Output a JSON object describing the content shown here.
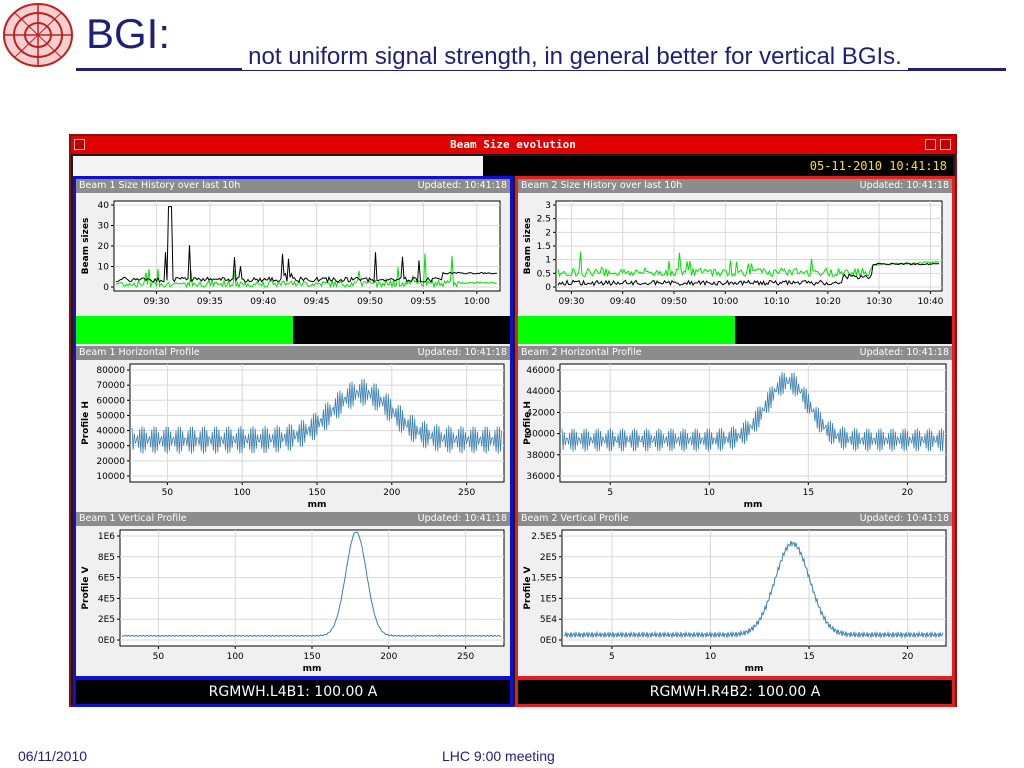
{
  "slide": {
    "title": "BGI:",
    "subtitle": "not uniform signal strength, in general better for vertical BGIs.",
    "footer_date": "06/11/2010",
    "footer_meeting": "LHC 9:00 meeting",
    "logo_icon": "lhc-logo-icon"
  },
  "app": {
    "window_title": "Beam Size evolution",
    "timestamp": "05-11-2010 10:41:18",
    "colors": {
      "titlebar": "#e00000",
      "beam1_frame": "#1010d0",
      "beam2_frame": "#e02020",
      "signal": "#3a7fb0",
      "green": "#00ff00"
    }
  },
  "beam1": {
    "size_history": {
      "header": "Beam 1 Size History over last 10h",
      "updated": "Updated: 10:41:18",
      "ylabel": "Beam sizes",
      "yticks": [
        "40",
        "30",
        "20",
        "10",
        "0"
      ],
      "xticks": [
        "09:30",
        "09:35",
        "09:40",
        "09:45",
        "09:50",
        "09:55",
        "10:00"
      ],
      "bar_fill_fraction": 0.5
    },
    "horizontal": {
      "header": "Beam 1 Horizontal Profile",
      "updated": "Updated: 10:41:18",
      "ylabel": "Profile H",
      "xlabel": "mm",
      "yticks": [
        "80000",
        "70000",
        "60000",
        "50000",
        "40000",
        "30000",
        "20000",
        "10000"
      ],
      "xticks": [
        "50",
        "100",
        "150",
        "200",
        "250"
      ]
    },
    "vertical": {
      "header": "Beam 1 Vertical Profile",
      "updated": "Updated: 10:41:18",
      "ylabel": "Profile V",
      "xlabel": "mm",
      "yticks": [
        "1E6",
        "8E5",
        "6E5",
        "4E5",
        "2E5",
        "0E0"
      ],
      "xticks": [
        "50",
        "100",
        "150",
        "200",
        "250"
      ]
    },
    "magnet": "RGMWH.L4B1: 100.00 A"
  },
  "beam2": {
    "size_history": {
      "header": "Beam 2 Size History over last 10h",
      "updated": "Updated: 10:41:18",
      "ylabel": "Beam sizes",
      "yticks": [
        "3",
        "2.5",
        "2",
        "1.5",
        "1",
        "0.5",
        "0"
      ],
      "xticks": [
        "09:30",
        "09:40",
        "09:50",
        "10:00",
        "10:10",
        "10:20",
        "10:30",
        "10:40"
      ],
      "bar_fill_fraction": 0.5
    },
    "horizontal": {
      "header": "Beam 2 Horizontal Profile",
      "updated": "Updated: 10:41:18",
      "ylabel": "Profile H",
      "xlabel": "mm",
      "yticks": [
        "46000",
        "44000",
        "42000",
        "40000",
        "38000",
        "36000"
      ],
      "xticks": [
        "5",
        "10",
        "15",
        "20"
      ]
    },
    "vertical": {
      "header": "Beam 2 Vertical Profile",
      "updated": "Updated: 10:41:18",
      "ylabel": "Profile V",
      "xlabel": "mm",
      "yticks": [
        "2.5E5",
        "2E5",
        "1.5E5",
        "1E5",
        "5E4",
        "0E0"
      ],
      "xticks": [
        "5",
        "10",
        "15",
        "20"
      ]
    },
    "magnet": "RGMWH.R4B2: 100.00 A"
  }
}
